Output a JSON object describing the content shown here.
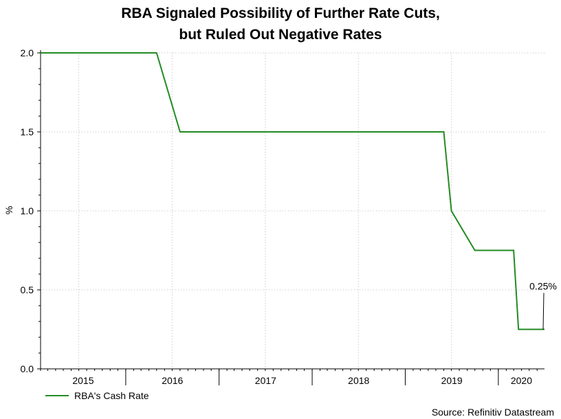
{
  "chart_data": {
    "type": "line",
    "title_line1": "RBA Signaled Possibility of Further Rate Cuts,",
    "title_line2": "but Ruled Out Negative Rates",
    "ylabel": "%",
    "ylim": [
      0,
      2.0
    ],
    "y_ticks": [
      "0.0",
      "0.5",
      "1.0",
      "1.5",
      "2.0"
    ],
    "x_start": "2015-02-01",
    "x_end": "2020-06-30",
    "x_tick_labels": [
      {
        "label": "2015",
        "year": 2015
      },
      {
        "label": "2016",
        "year": 2016
      },
      {
        "label": "2017",
        "year": 2017
      },
      {
        "label": "2018",
        "year": 2018
      },
      {
        "label": "2019",
        "year": 2019
      },
      {
        "label": "2020",
        "year": 2020
      }
    ],
    "grid": true,
    "legend_placement": "bottom-left",
    "series": [
      {
        "name": "RBA's Cash Rate",
        "color": "#228b22",
        "points": [
          {
            "x": "2015-02-01",
            "y": 2.0
          },
          {
            "x": "2016-05-01",
            "y": 2.0
          },
          {
            "x": "2016-08-01",
            "y": 1.5
          },
          {
            "x": "2019-06-01",
            "y": 1.5
          },
          {
            "x": "2019-07-01",
            "y": 1.0
          },
          {
            "x": "2019-10-01",
            "y": 0.75
          },
          {
            "x": "2020-03-01",
            "y": 0.75
          },
          {
            "x": "2020-03-20",
            "y": 0.25
          },
          {
            "x": "2020-06-30",
            "y": 0.25
          }
        ]
      }
    ],
    "annotation": {
      "text": "0.25%",
      "x": "2020-06-30",
      "y": 0.25
    }
  },
  "source": "Source: Refinitiv Datastream"
}
